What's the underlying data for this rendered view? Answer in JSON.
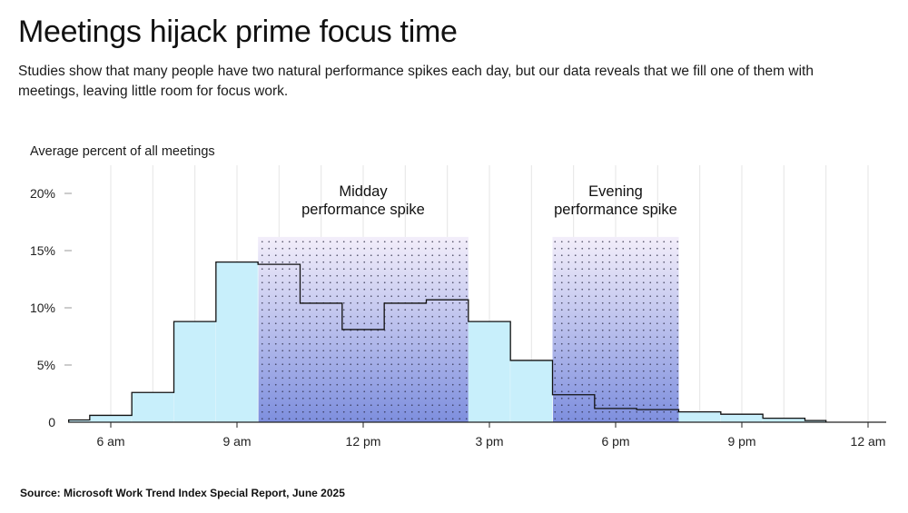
{
  "header": {
    "title": "Meetings hijack prime focus time",
    "subtitle": "Studies show that many people have two natural performance spikes each day, but our data reveals that we fill one of them with meetings, leaving little room for focus work."
  },
  "source": "Source: Microsoft Work Trend Index Special Report, June 2025",
  "chart_data": {
    "type": "bar",
    "ylabel": "Average percent of all meetings",
    "ylim": [
      0,
      21
    ],
    "yticks": [
      {
        "value": 0,
        "label": "0"
      },
      {
        "value": 5,
        "label": "5%"
      },
      {
        "value": 10,
        "label": "10%"
      },
      {
        "value": 15,
        "label": "15%"
      },
      {
        "value": 20,
        "label": "20%"
      }
    ],
    "xticks": [
      {
        "hour": 6,
        "label": "6 am"
      },
      {
        "hour": 9,
        "label": "9 am"
      },
      {
        "hour": 12,
        "label": "12 pm"
      },
      {
        "hour": 15,
        "label": "3 pm"
      },
      {
        "hour": 18,
        "label": "6 pm"
      },
      {
        "hour": 21,
        "label": "9 pm"
      },
      {
        "hour": 24,
        "label": "12 am"
      }
    ],
    "xlim": [
      5,
      24.6
    ],
    "grid": true,
    "bars": [
      {
        "start": 5.0,
        "end": 5.5,
        "value": 0.2
      },
      {
        "start": 5.5,
        "end": 6.5,
        "value": 0.6
      },
      {
        "start": 6.5,
        "end": 7.5,
        "value": 2.6
      },
      {
        "start": 7.5,
        "end": 8.5,
        "value": 8.8
      },
      {
        "start": 8.5,
        "end": 9.5,
        "value": 14.0
      },
      {
        "start": 9.5,
        "end": 10.5,
        "value": 13.8
      },
      {
        "start": 10.5,
        "end": 11.5,
        "value": 10.4
      },
      {
        "start": 11.5,
        "end": 12.5,
        "value": 8.1
      },
      {
        "start": 12.5,
        "end": 13.5,
        "value": 10.4
      },
      {
        "start": 13.5,
        "end": 14.5,
        "value": 10.7
      },
      {
        "start": 14.5,
        "end": 15.5,
        "value": 8.8
      },
      {
        "start": 15.5,
        "end": 16.5,
        "value": 5.4
      },
      {
        "start": 16.5,
        "end": 17.5,
        "value": 2.4
      },
      {
        "start": 17.5,
        "end": 18.5,
        "value": 1.2
      },
      {
        "start": 18.5,
        "end": 19.5,
        "value": 1.1
      },
      {
        "start": 19.5,
        "end": 20.5,
        "value": 0.9
      },
      {
        "start": 20.5,
        "end": 21.5,
        "value": 0.7
      },
      {
        "start": 21.5,
        "end": 22.5,
        "value": 0.35
      },
      {
        "start": 22.5,
        "end": 23.0,
        "value": 0.15
      }
    ],
    "highlights": [
      {
        "start": 9.5,
        "end": 14.5,
        "top": 16.2,
        "label_line1": "Midday",
        "label_line2": "performance spike"
      },
      {
        "start": 16.5,
        "end": 19.5,
        "top": 16.2,
        "label_line1": "Evening",
        "label_line2": "performance spike"
      }
    ],
    "colors": {
      "bar_fill": "#c8effb",
      "bar_stroke": "#111111",
      "highlight_top": "#f3eefa",
      "highlight_bottom": "#7e8fde",
      "grid": "#e5e5e5",
      "dot": "#2a2a44"
    }
  }
}
